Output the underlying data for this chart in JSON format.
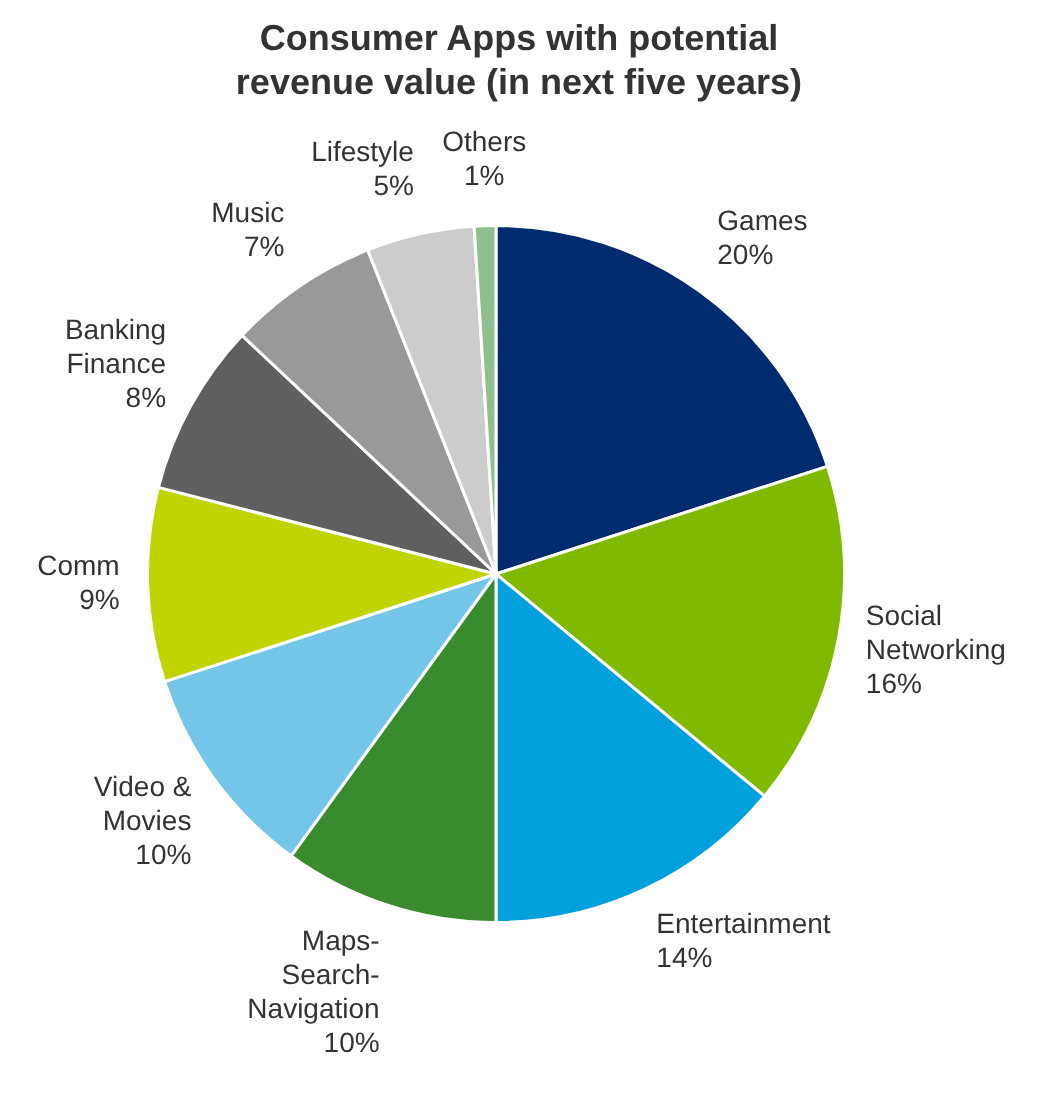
{
  "chart_data": {
    "type": "pie",
    "title": "Consumer Apps with potential revenue value (in next five years)",
    "categories": [
      "Games",
      "Social Networking",
      "Entertainment",
      "Maps-Search-Navigation",
      "Video & Movies",
      "Comm",
      "Banking Finance",
      "Music",
      "Lifestyle",
      "Others"
    ],
    "values": [
      20,
      16,
      14,
      10,
      10,
      9,
      8,
      7,
      5,
      1
    ],
    "value_labels": [
      "20%",
      "16%",
      "14%",
      "10%",
      "10%",
      "9%",
      "8%",
      "7%",
      "5%",
      "1%"
    ],
    "colors": [
      "#002b6f",
      "#7fba00",
      "#00a0dc",
      "#3a8a2e",
      "#74c6e8",
      "#bfd400",
      "#5f5f5f",
      "#999999",
      "#cccccc",
      "#8fbf8f"
    ],
    "legend": false
  }
}
